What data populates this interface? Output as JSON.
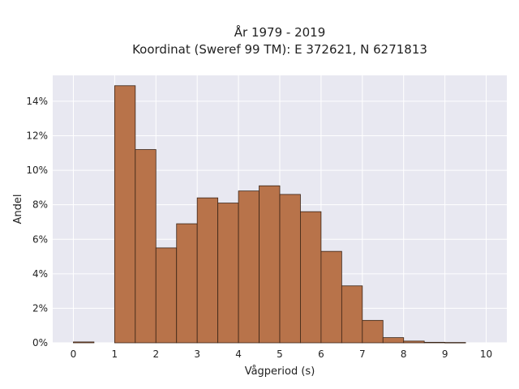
{
  "chart_data": {
    "type": "bar",
    "title": "År 1979 - 2019",
    "subtitle": "Koordinat (Sweref 99 TM): E 372621, N 6271813",
    "xlabel": "Vågperiod (s)",
    "ylabel": "Andel",
    "xlim": [
      -0.5,
      10.5
    ],
    "ylim": [
      0,
      15.5
    ],
    "x_ticks": [
      0,
      1,
      2,
      3,
      4,
      5,
      6,
      7,
      8,
      9,
      10
    ],
    "x_tick_labels": [
      "0",
      "1",
      "2",
      "3",
      "4",
      "5",
      "6",
      "7",
      "8",
      "9",
      "10"
    ],
    "y_ticks": [
      0,
      2,
      4,
      6,
      8,
      10,
      12,
      14
    ],
    "y_tick_labels": [
      "0%",
      "2%",
      "4%",
      "6%",
      "8%",
      "10%",
      "12%",
      "14%"
    ],
    "bin_width": 0.5,
    "bins": [
      {
        "start": 0.0,
        "value": 0.05
      },
      {
        "start": 0.5,
        "value": 0.0
      },
      {
        "start": 1.0,
        "value": 14.9
      },
      {
        "start": 1.5,
        "value": 11.2
      },
      {
        "start": 2.0,
        "value": 5.5
      },
      {
        "start": 2.5,
        "value": 6.9
      },
      {
        "start": 3.0,
        "value": 8.4
      },
      {
        "start": 3.5,
        "value": 8.1
      },
      {
        "start": 4.0,
        "value": 8.8
      },
      {
        "start": 4.5,
        "value": 9.1
      },
      {
        "start": 5.0,
        "value": 8.6
      },
      {
        "start": 5.5,
        "value": 7.6
      },
      {
        "start": 6.0,
        "value": 5.3
      },
      {
        "start": 6.5,
        "value": 3.3
      },
      {
        "start": 7.0,
        "value": 1.3
      },
      {
        "start": 7.5,
        "value": 0.3
      },
      {
        "start": 8.0,
        "value": 0.1
      },
      {
        "start": 8.5,
        "value": 0.03
      },
      {
        "start": 9.0,
        "value": 0.02
      }
    ],
    "grid": true,
    "colors": {
      "bar_fill": "#b8734a",
      "bar_edge": "#3a2416",
      "plot_background": "#e8e8f1",
      "grid": "#ffffff"
    }
  }
}
